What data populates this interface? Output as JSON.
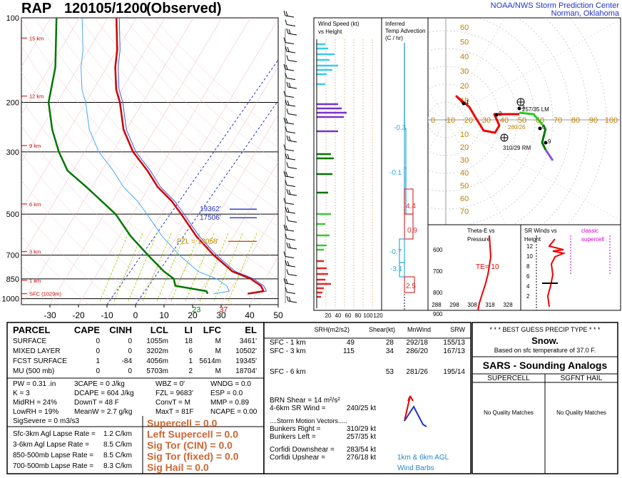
{
  "header": {
    "model": "RAP",
    "datetime": "120105/1200",
    "observed": "(Observed)",
    "center_line1": "NOAA/NWS Storm Prediction Center",
    "center_line2": "Norman, Oklahoma"
  },
  "colors": {
    "temperature": "#cc0000",
    "dewpoint": "#007700",
    "virtual_temp": "#4455dd",
    "wetbulb": "#44aaff",
    "accent_orange": "#c08000",
    "parcel_path": "#99cc00"
  },
  "chart_data": [
    {
      "type": "line",
      "name": "skewt",
      "pressure_ticks": [
        "100",
        "200",
        "300",
        "500",
        "700",
        "850",
        "1000"
      ],
      "pressure_values": [
        100,
        200,
        300,
        500,
        700,
        850,
        1000
      ],
      "temp_ticks": [
        "-30",
        "-10",
        "10",
        "30",
        "50"
      ],
      "temp_ticks_minor": [
        "-20",
        "0",
        "20",
        "40"
      ],
      "temp_tick_values": [
        -30,
        -20,
        -10,
        0,
        10,
        20,
        30,
        40,
        50
      ],
      "height_labels": [
        "15 km",
        "12 km",
        "9 km",
        "6 km",
        "3 km",
        "1 km",
        "SFC (1029m)"
      ],
      "height_label_pressures": [
        118,
        190,
        285,
        460,
        680,
        860,
        960
      ],
      "temperature_profile": [
        {
          "p": 960,
          "t": 37
        },
        {
          "p": 940,
          "t": 42
        },
        {
          "p": 900,
          "t": 40
        },
        {
          "p": 850,
          "t": 35
        },
        {
          "p": 800,
          "t": 27
        },
        {
          "p": 700,
          "t": 17
        },
        {
          "p": 600,
          "t": 7
        },
        {
          "p": 500,
          "t": -3
        },
        {
          "p": 450,
          "t": -9
        },
        {
          "p": 400,
          "t": -17
        },
        {
          "p": 350,
          "t": -24
        },
        {
          "p": 300,
          "t": -33
        },
        {
          "p": 250,
          "t": -41
        },
        {
          "p": 200,
          "t": -48
        },
        {
          "p": 180,
          "t": -52
        },
        {
          "p": 150,
          "t": -57
        },
        {
          "p": 130,
          "t": -60
        },
        {
          "p": 100,
          "t": -67
        }
      ],
      "dewpoint_profile": [
        {
          "p": 960,
          "t": 23
        },
        {
          "p": 940,
          "t": 22
        },
        {
          "p": 900,
          "t": 10
        },
        {
          "p": 850,
          "t": 8
        },
        {
          "p": 800,
          "t": 3
        },
        {
          "p": 700,
          "t": -6
        },
        {
          "p": 600,
          "t": -16
        },
        {
          "p": 500,
          "t": -26
        },
        {
          "p": 400,
          "t": -42
        },
        {
          "p": 350,
          "t": -52
        },
        {
          "p": 300,
          "t": -59
        },
        {
          "p": 250,
          "t": -66
        },
        {
          "p": 200,
          "t": -73
        },
        {
          "p": 150,
          "t": -78
        },
        {
          "p": 100,
          "t": -88
        }
      ],
      "sfc_temp_label": "37",
      "sfc_dewp_label": "23",
      "lcl_label": "LCL",
      "annotations": [
        {
          "text": "19362'",
          "p": 480
        },
        {
          "text": "17506'",
          "p": 515
        },
        {
          "text": "FZL = 13058'",
          "p": 625
        }
      ]
    },
    {
      "type": "bar",
      "name": "wind-speed",
      "title_line1": "Wind Speed (kt)",
      "title_line2": "vs Height",
      "axis_ticks": [
        "20",
        "40",
        "60",
        "80",
        "100",
        "120"
      ]
    },
    {
      "type": "bar",
      "name": "temp-advection",
      "title_line1": "Inferred",
      "title_line2": "Temp Advection",
      "title_line3": "(C / hr)",
      "labels": [
        "-0.3",
        "-0.1",
        "4.4",
        "0.9",
        "-0.7",
        "-3.1",
        "2.5"
      ]
    },
    {
      "type": "line",
      "name": "hodograph",
      "rings": [
        "10",
        "20",
        "30",
        "40",
        "50",
        "60",
        "70",
        "80",
        "90"
      ],
      "xticks": [
        "0",
        "10",
        "20",
        "30",
        "40",
        "50",
        "60",
        "70",
        "80",
        "90",
        "100"
      ],
      "labels": [
        "257/35 LM",
        "310/29 RM",
        "280/26"
      ],
      "point_labels": [
        "1",
        "2",
        "3",
        "6",
        "9"
      ]
    },
    {
      "type": "line",
      "name": "theta-e",
      "title_line1": "Theta-E vs",
      "title_line2": "Pressure",
      "y_ticks": [
        "600",
        "700",
        "800",
        "900"
      ],
      "x_ticks": [
        "288",
        "298",
        "308",
        "318",
        "328"
      ],
      "te_label": "TE= 10"
    },
    {
      "type": "line",
      "name": "sr-winds",
      "title_line1": "SR Winds vs",
      "title_line2": "Height",
      "y_ticks": [
        "12",
        "10",
        "8",
        "6",
        "4",
        "2"
      ],
      "classic_label": "classic",
      "supercell_label": "supercell"
    }
  ],
  "parcel_table": {
    "headers": [
      "PARCEL",
      "CAPE",
      "CINH",
      "LCL",
      "LI",
      "LFC",
      "EL"
    ],
    "rows": [
      [
        "SURFACE",
        "0",
        "0",
        "1055m",
        "18",
        "M",
        "3461'"
      ],
      [
        "MIXED LAYER",
        "0",
        "0",
        "3202m",
        "6",
        "M",
        "10502'"
      ],
      [
        "FCST SURFACE",
        "1",
        "-84",
        "4056m",
        "1",
        "5614m",
        "19345'"
      ],
      [
        "MU   (500 mb)",
        "0",
        "0",
        "5703m",
        "2",
        "M",
        "18704'"
      ]
    ]
  },
  "indices": [
    [
      "PW = 0.31 .in",
      "3CAPE = 0 J/kg",
      "WBZ = 0'",
      "WNDG = 0.0"
    ],
    [
      "K = 3",
      "DCAPE = 604 J/kg",
      "FZL = 9683'",
      "ESP = 0.0"
    ],
    [
      "MidRH = 24%",
      "DownT = 48 F",
      "ConvT = M",
      "MMP = 0.89"
    ],
    [
      "LowRH = 19%",
      "MeanW = 2.7 g/kg",
      "MaxT = 81F",
      "NCAPE = 0.00"
    ]
  ],
  "sig_severe": "SigSevere = 0 m3/s3",
  "lapse_rates": [
    [
      "Sfc-3km Agl Lapse Rate =",
      "1.2 C/km"
    ],
    [
      "3-6km Agl Lapse Rate =",
      "8.5 C/km"
    ],
    [
      "850-500mb Lapse Rate =",
      "8.5 C/km"
    ],
    [
      "700-500mb Lapse Rate =",
      "8.3 C/km"
    ]
  ],
  "composites": [
    "Supercell = 0.0",
    "Left Supercell = 0.0",
    "Sig Tor (CIN) = 0.0",
    "Sig Tor (fixed) = 0.0",
    "Sig Hail = 0.0"
  ],
  "kinematics": {
    "headers": [
      "SRH(m2/s2)",
      "Shear(kt)",
      "MnWind",
      "SRW"
    ],
    "rows": [
      [
        "SFC - 1 km",
        "49",
        "28",
        "292/18",
        "155/13"
      ],
      [
        "SFC - 3 km",
        "115",
        "34",
        "286/20",
        "167/13"
      ],
      [
        "SFC - 6 km",
        "",
        "53",
        "281/26",
        "195/14"
      ]
    ],
    "brn_shear": "BRN Shear =  14 m²/s²",
    "sr_wind_label": "4-6km SR Wind =",
    "sr_wind_value": "240/25 kt",
    "storm_motion_title": "....Storm Motion Vectors.....",
    "bunkers_right_label": "Bunkers Right =",
    "bunkers_right_value": "310/29 kt",
    "bunkers_left_label": "Bunkers Left =",
    "bunkers_left_value": "257/35 kt",
    "corfidi_down_label": "Corfidi Downshear =",
    "corfidi_down_value": "283/54 kt",
    "corfidi_up_label": "Corfidi Upshear =",
    "corfidi_up_value": "276/18 kt",
    "barb_note_line1": "1km & 6km AGL",
    "barb_note_line2": "Wind Barbs"
  },
  "precip": {
    "title": "* * * BEST GUESS PRECIP TYPE * * *",
    "type": "Snow.",
    "note": "Based on sfc temperature of 37.0 F."
  },
  "sars": {
    "title": "SARS - Sounding Analogs",
    "col1": "SUPERCELL",
    "col2": "SGFNT HAIL",
    "col1_result": "No Quality Matches",
    "col2_result": "No Quality Matches"
  }
}
